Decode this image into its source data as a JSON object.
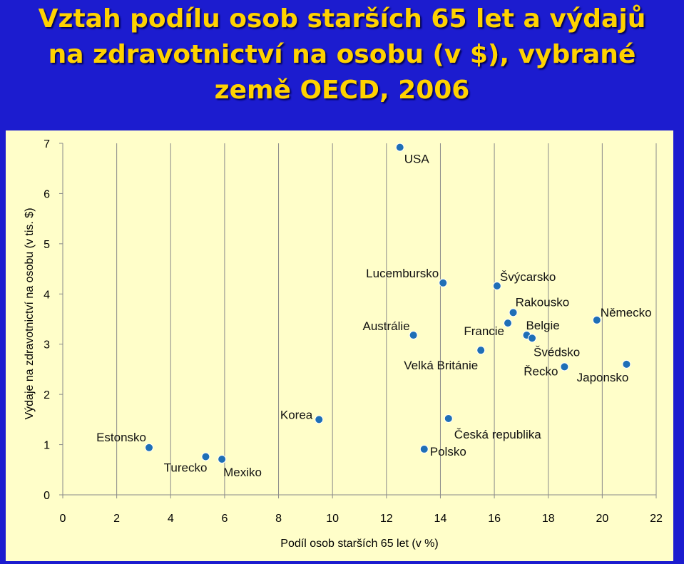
{
  "title_lines": [
    "Vztah podílu osob starších 65 let a výdajů",
    "na zdravotnictví na osobu (v $), vybrané",
    "země OECD, 2006"
  ],
  "chart_data": {
    "type": "scatter",
    "title": "Vztah podílu osob starších 65 let a výdajů na zdravotnictví na osobu (v $), vybrané země OECD, 2006",
    "xlabel": "Podíl osob starších 65 let (v %)",
    "ylabel": "Výdaje na zdravotnictví na osobu  (v tis. $)",
    "xlim": [
      0,
      22
    ],
    "ylim": [
      0,
      7
    ],
    "xticks": [
      "0",
      "2",
      "4",
      "6",
      "8",
      "10",
      "12",
      "14",
      "16",
      "18",
      "20",
      "22"
    ],
    "yticks": [
      "0",
      "1",
      "2",
      "3",
      "4",
      "5",
      "6",
      "7"
    ],
    "grid": "vertical",
    "marker_color": "#1f6fb6",
    "points": [
      {
        "label": "USA",
        "x": 12.5,
        "y": 6.92
      },
      {
        "label": "Lucembursko",
        "x": 14.1,
        "y": 4.22
      },
      {
        "label": "Švýcarsko",
        "x": 16.1,
        "y": 4.16
      },
      {
        "label": "Rakousko",
        "x": 16.7,
        "y": 3.63
      },
      {
        "label": "Francie",
        "x": 16.5,
        "y": 3.42
      },
      {
        "label": "Belgie",
        "x": 17.2,
        "y": 3.18
      },
      {
        "label": "Švédsko",
        "x": 17.4,
        "y": 3.12
      },
      {
        "label": "Austrálie",
        "x": 13.0,
        "y": 3.18
      },
      {
        "label": "Velká Británie",
        "x": 15.5,
        "y": 2.88
      },
      {
        "label": "Řecko",
        "x": 18.6,
        "y": 2.55
      },
      {
        "label": "Německo",
        "x": 19.8,
        "y": 3.48
      },
      {
        "label": "Japonsko",
        "x": 20.9,
        "y": 2.6
      },
      {
        "label": "Korea",
        "x": 9.5,
        "y": 1.5
      },
      {
        "label": "Česká republika",
        "x": 14.3,
        "y": 1.52
      },
      {
        "label": "Polsko",
        "x": 13.4,
        "y": 0.91
      },
      {
        "label": "Estonsko",
        "x": 3.2,
        "y": 0.94
      },
      {
        "label": "Turecko",
        "x": 5.3,
        "y": 0.76
      },
      {
        "label": "Mexiko",
        "x": 5.9,
        "y": 0.71
      }
    ]
  }
}
